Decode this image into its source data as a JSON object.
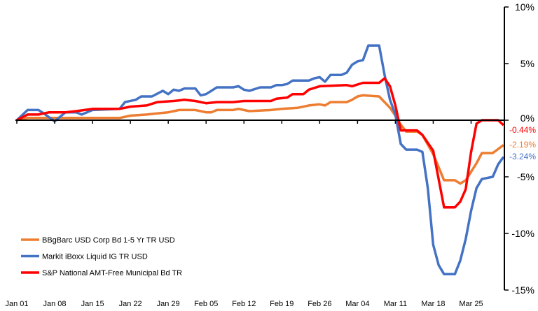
{
  "chart_data": {
    "type": "line",
    "title": "",
    "xlabel": "",
    "ylabel": "",
    "x_ticks": [
      "Jan 01",
      "Jan 08",
      "Jan 15",
      "Jan 22",
      "Jan 29",
      "Feb 05",
      "Feb 12",
      "Feb 19",
      "Feb 26",
      "Mar 04",
      "Mar 11",
      "Mar 18",
      "Mar 25"
    ],
    "x_range": [
      "Jan 01",
      "Mar 31"
    ],
    "y_ticks": [
      "10%",
      "5%",
      "0%",
      "-5%",
      "-10%",
      "-15%"
    ],
    "y_tick_values": [
      10,
      5,
      0,
      -5,
      -10,
      -15
    ],
    "ylim": [
      -15,
      10
    ],
    "y_axis_side": "right",
    "grid": false,
    "legend_placement": "bottom-left",
    "series": [
      {
        "name": "BBgBarc USD Corp Bd 1-5 Yr TR USD",
        "color": "#ED7D31",
        "end_label": "-2.19%",
        "points": [
          [
            "Jan 01",
            0
          ],
          [
            "Jan 03",
            0.2
          ],
          [
            "Jan 20",
            0.2
          ],
          [
            "Jan 22",
            0.4
          ],
          [
            "Jan 25",
            0.5
          ],
          [
            "Jan 27",
            0.6
          ],
          [
            "Jan 29",
            0.7
          ],
          [
            "Jan 31",
            0.9
          ],
          [
            "Feb 03",
            0.9
          ],
          [
            "Feb 05",
            0.7
          ],
          [
            "Feb 06",
            0.7
          ],
          [
            "Feb 07",
            0.9
          ],
          [
            "Feb 10",
            0.9
          ],
          [
            "Feb 11",
            1.0
          ],
          [
            "Feb 13",
            0.8
          ],
          [
            "Feb 17",
            0.9
          ],
          [
            "Feb 19",
            1.0
          ],
          [
            "Feb 22",
            1.1
          ],
          [
            "Feb 24",
            1.3
          ],
          [
            "Feb 26",
            1.4
          ],
          [
            "Feb 27",
            1.3
          ],
          [
            "Feb 28",
            1.6
          ],
          [
            "Mar 02",
            1.6
          ],
          [
            "Mar 03",
            1.8
          ],
          [
            "Mar 04",
            2.1
          ],
          [
            "Mar 05",
            2.2
          ],
          [
            "Mar 08",
            2.1
          ],
          [
            "Mar 10",
            1.1
          ],
          [
            "Mar 11",
            0.4
          ],
          [
            "Mar 12",
            -0.4
          ],
          [
            "Mar 13",
            -1.0
          ],
          [
            "Mar 15",
            -1.0
          ],
          [
            "Mar 16",
            -1.3
          ],
          [
            "Mar 18",
            -3.0
          ],
          [
            "Mar 20",
            -5.3
          ],
          [
            "Mar 22",
            -5.3
          ],
          [
            "Mar 23",
            -5.6
          ],
          [
            "Mar 24",
            -5.3
          ],
          [
            "Mar 26",
            -3.8
          ],
          [
            "Mar 27",
            -2.9
          ],
          [
            "Mar 29",
            -2.9
          ],
          [
            "Mar 31",
            -2.19
          ]
        ]
      },
      {
        "name": "Markit iBoxx Liquid IG TR USD",
        "color": "#4472C4",
        "end_label": "-3.24%",
        "points": [
          [
            "Jan 01",
            0
          ],
          [
            "Jan 03",
            0.9
          ],
          [
            "Jan 05",
            0.9
          ],
          [
            "Jan 06",
            0.6
          ],
          [
            "Jan 08",
            -0.1
          ],
          [
            "Jan 10",
            0.7
          ],
          [
            "Jan 12",
            0.7
          ],
          [
            "Jan 13",
            0.5
          ],
          [
            "Jan 15",
            0.9
          ],
          [
            "Jan 20",
            1.0
          ],
          [
            "Jan 21",
            1.6
          ],
          [
            "Jan 23",
            1.8
          ],
          [
            "Jan 24",
            2.1
          ],
          [
            "Jan 26",
            2.1
          ],
          [
            "Jan 28",
            2.6
          ],
          [
            "Jan 29",
            2.3
          ],
          [
            "Jan 30",
            2.7
          ],
          [
            "Jan 31",
            2.6
          ],
          [
            "Feb 01",
            2.8
          ],
          [
            "Feb 03",
            2.8
          ],
          [
            "Feb 04",
            2.2
          ],
          [
            "Feb 05",
            2.3
          ],
          [
            "Feb 07",
            2.9
          ],
          [
            "Feb 10",
            2.9
          ],
          [
            "Feb 11",
            3.0
          ],
          [
            "Feb 12",
            2.7
          ],
          [
            "Feb 13",
            2.6
          ],
          [
            "Feb 15",
            2.9
          ],
          [
            "Feb 17",
            2.9
          ],
          [
            "Feb 18",
            3.1
          ],
          [
            "Feb 19",
            3.1
          ],
          [
            "Feb 20",
            3.2
          ],
          [
            "Feb 21",
            3.5
          ],
          [
            "Feb 24",
            3.5
          ],
          [
            "Feb 25",
            3.7
          ],
          [
            "Feb 26",
            3.8
          ],
          [
            "Feb 27",
            3.4
          ],
          [
            "Feb 28",
            4.0
          ],
          [
            "Mar 01",
            4.0
          ],
          [
            "Mar 02",
            4.2
          ],
          [
            "Mar 03",
            4.9
          ],
          [
            "Mar 04",
            5.2
          ],
          [
            "Mar 05",
            5.3
          ],
          [
            "Mar 06",
            6.6
          ],
          [
            "Mar 08",
            6.6
          ],
          [
            "Mar 09",
            4.0
          ],
          [
            "Mar 10",
            1.8
          ],
          [
            "Mar 11",
            0.5
          ],
          [
            "Mar 12",
            -2.1
          ],
          [
            "Mar 13",
            -2.6
          ],
          [
            "Mar 15",
            -2.6
          ],
          [
            "Mar 16",
            -2.8
          ],
          [
            "Mar 17",
            -6.0
          ],
          [
            "Mar 18",
            -11.0
          ],
          [
            "Mar 19",
            -12.8
          ],
          [
            "Mar 20",
            -13.6
          ],
          [
            "Mar 22",
            -13.6
          ],
          [
            "Mar 23",
            -12.4
          ],
          [
            "Mar 24",
            -10.5
          ],
          [
            "Mar 25",
            -8.0
          ],
          [
            "Mar 26",
            -6.0
          ],
          [
            "Mar 27",
            -5.2
          ],
          [
            "Mar 29",
            -5.0
          ],
          [
            "Mar 30",
            -3.9
          ],
          [
            "Mar 31",
            -3.24
          ]
        ]
      },
      {
        "name": "S&P National AMT-Free Municipal Bd TR",
        "color": "#FF0000",
        "end_label": "-0.44%",
        "points": [
          [
            "Jan 01",
            0
          ],
          [
            "Jan 03",
            0.5
          ],
          [
            "Jan 05",
            0.5
          ],
          [
            "Jan 07",
            0.7
          ],
          [
            "Jan 10",
            0.7
          ],
          [
            "Jan 12",
            0.8
          ],
          [
            "Jan 15",
            1.0
          ],
          [
            "Jan 20",
            1.0
          ],
          [
            "Jan 22",
            1.2
          ],
          [
            "Jan 25",
            1.3
          ],
          [
            "Jan 27",
            1.6
          ],
          [
            "Jan 30",
            1.7
          ],
          [
            "Feb 01",
            1.8
          ],
          [
            "Feb 03",
            1.7
          ],
          [
            "Feb 05",
            1.5
          ],
          [
            "Feb 07",
            1.6
          ],
          [
            "Feb 10",
            1.6
          ],
          [
            "Feb 12",
            1.7
          ],
          [
            "Feb 17",
            1.7
          ],
          [
            "Feb 18",
            1.9
          ],
          [
            "Feb 20",
            2.0
          ],
          [
            "Feb 21",
            2.3
          ],
          [
            "Feb 23",
            2.3
          ],
          [
            "Feb 24",
            2.7
          ],
          [
            "Feb 26",
            3.0
          ],
          [
            "Mar 02",
            3.1
          ],
          [
            "Mar 03",
            3.0
          ],
          [
            "Mar 05",
            3.3
          ],
          [
            "Mar 08",
            3.3
          ],
          [
            "Mar 09",
            3.7
          ],
          [
            "Mar 10",
            3.0
          ],
          [
            "Mar 11",
            1.3
          ],
          [
            "Mar 12",
            -0.9
          ],
          [
            "Mar 15",
            -0.9
          ],
          [
            "Mar 16",
            -1.3
          ],
          [
            "Mar 18",
            -2.7
          ],
          [
            "Mar 20",
            -7.7
          ],
          [
            "Mar 22",
            -7.7
          ],
          [
            "Mar 23",
            -7.2
          ],
          [
            "Mar 24",
            -6.1
          ],
          [
            "Mar 25",
            -2.8
          ],
          [
            "Mar 26",
            -0.3
          ],
          [
            "Mar 27",
            0
          ],
          [
            "Mar 30",
            0
          ],
          [
            "Mar 31",
            -0.44
          ]
        ]
      }
    ]
  }
}
